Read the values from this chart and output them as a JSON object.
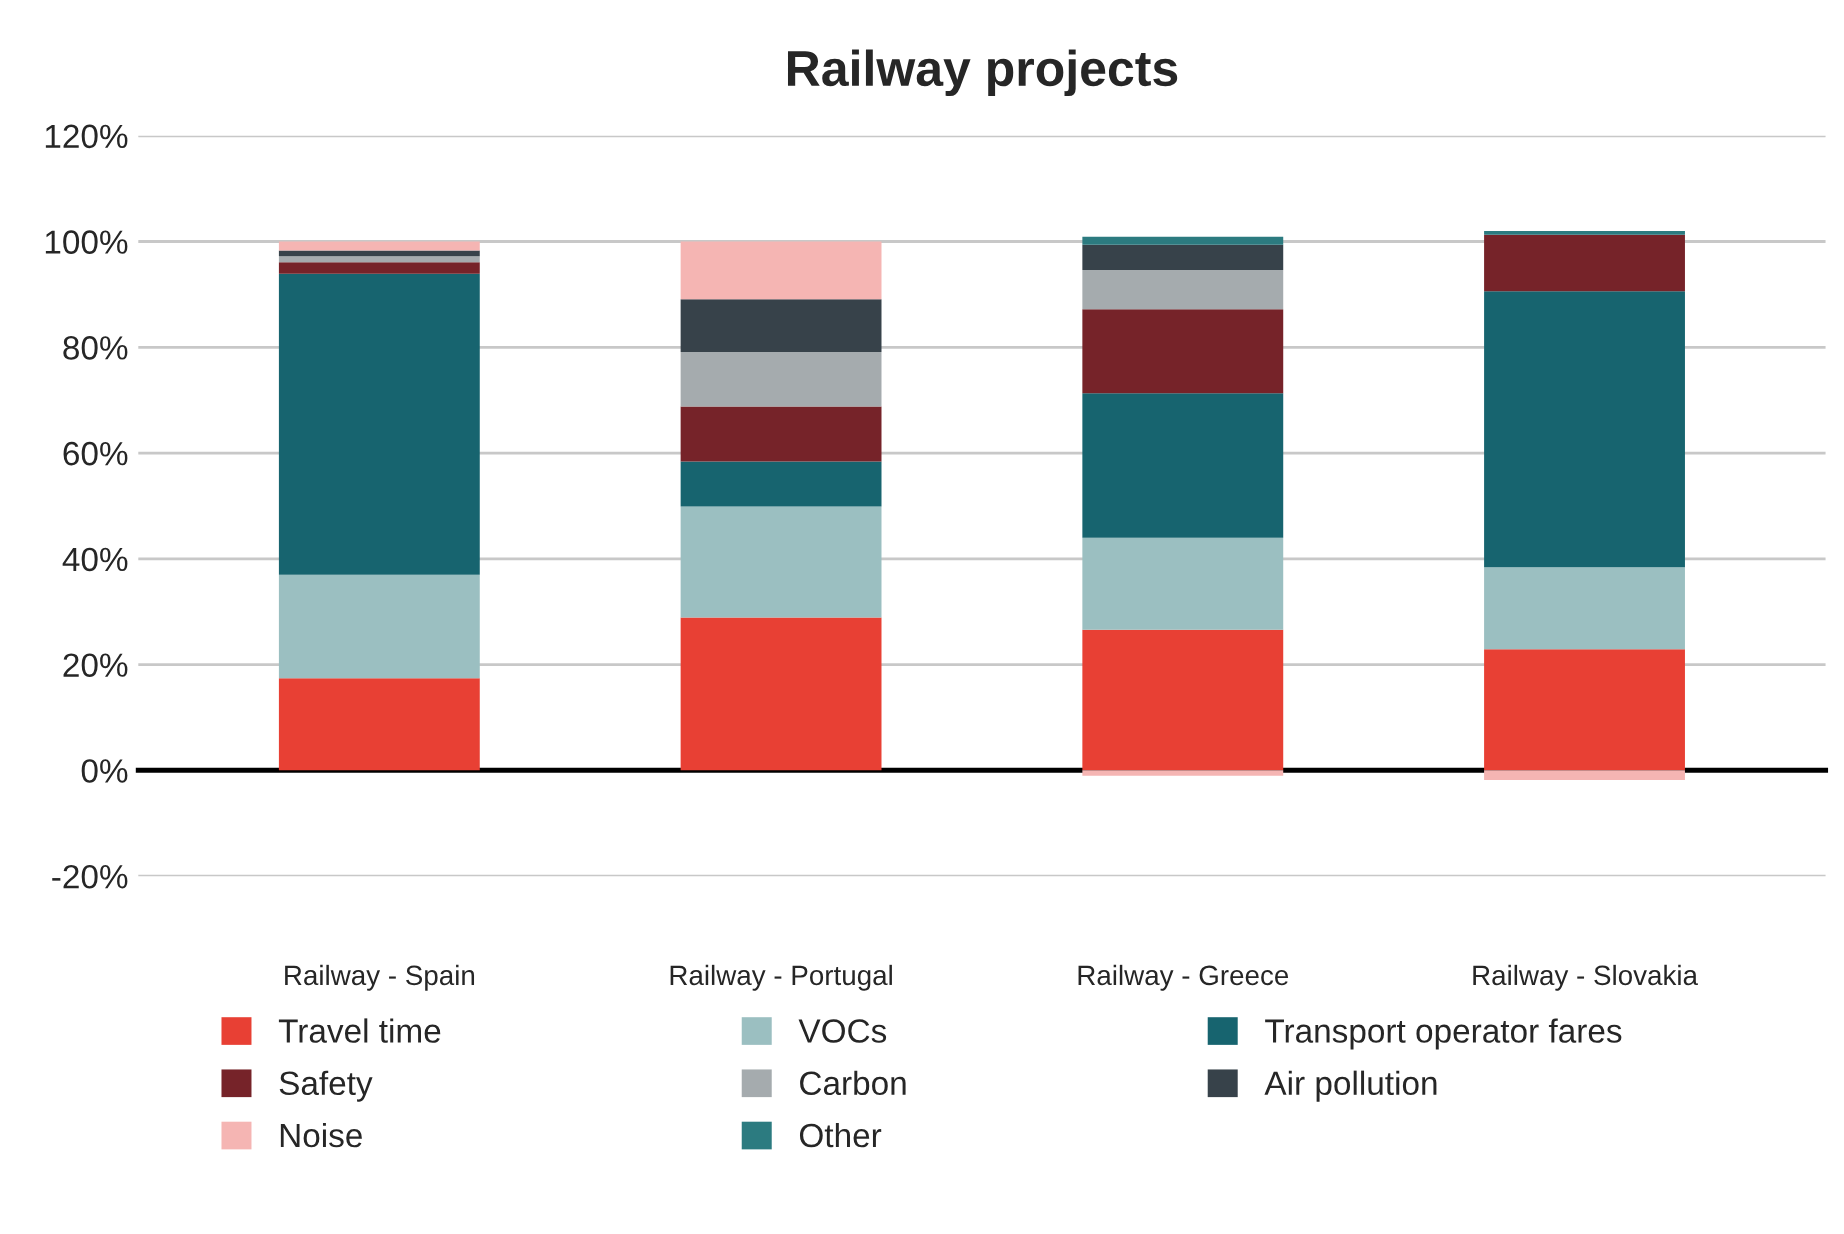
{
  "chart_data": {
    "type": "bar",
    "title": "Railway projects",
    "stacked": true,
    "grid": "y",
    "legend": "bottom",
    "categories": [
      "Railway - Spain",
      "Railway - Portugal",
      "Railway - Greece",
      "Railway - Slovakia"
    ],
    "series": [
      {
        "name": "Travel time",
        "color": "#e84034",
        "values": [
          17.4,
          28.9,
          26.6,
          22.9
        ]
      },
      {
        "name": "VOCs",
        "color": "#9bbfc1",
        "values": [
          19.6,
          21.0,
          17.4,
          15.5
        ]
      },
      {
        "name": "Transport operator fares",
        "color": "#17646f",
        "values": [
          56.9,
          8.5,
          27.3,
          52.2
        ]
      },
      {
        "name": "Safety",
        "color": "#762329",
        "values": [
          2.2,
          10.4,
          15.9,
          10.7
        ]
      },
      {
        "name": "Carbon",
        "color": "#a5abae",
        "values": [
          1.1,
          10.3,
          7.4,
          null
        ]
      },
      {
        "name": "Air pollution",
        "color": "#37424a",
        "values": [
          1.1,
          10.0,
          4.8,
          null
        ]
      },
      {
        "name": "Noise",
        "color": "#f5b5b3",
        "values": [
          1.7,
          10.9,
          -1.0,
          -1.8
        ]
      },
      {
        "name": "Other",
        "color": "#2c7b80",
        "values": [
          null,
          null,
          1.5,
          0.7
        ]
      }
    ],
    "ylim": [
      -20,
      120
    ],
    "yticks": [
      {
        "value": -20,
        "label": "-20%"
      },
      {
        "value": 0,
        "label": "0%"
      },
      {
        "value": 20,
        "label": "20%"
      },
      {
        "value": 40,
        "label": "40%"
      },
      {
        "value": 60,
        "label": "60%"
      },
      {
        "value": 80,
        "label": "80%"
      },
      {
        "value": 100,
        "label": "100%"
      },
      {
        "value": 120,
        "label": "120%"
      }
    ]
  }
}
